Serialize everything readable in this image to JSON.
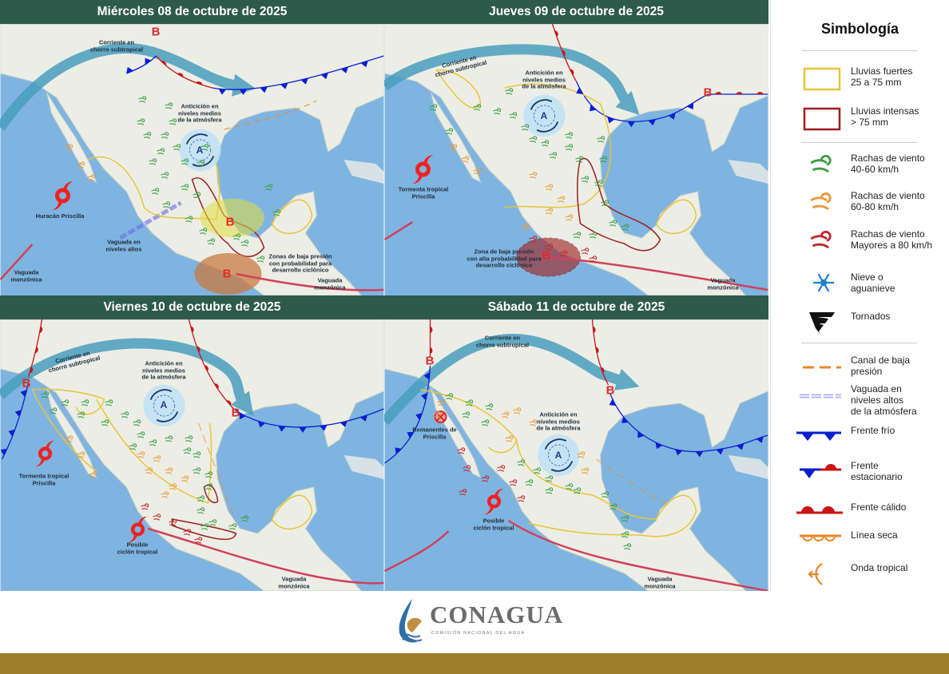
{
  "panels": [
    {
      "title": "Miércoles 08 de octubre de 2025",
      "labels": {
        "jet": "Corriente en\nchorro subtropical",
        "anticyclone": "Anticición en\nniveles medios\nde la atmósfera",
        "storm": "Huracán Priscilla",
        "upper_trough": "Vaguada en\nniveles altos",
        "low_zone": "Zonas de baja presión\ncon probabilidad para\ndesarrollo ciclónico",
        "monsoon_1": "Vaguada\nmonzónica",
        "monsoon_2": "Vaguada\nmonzónica",
        "high": "A",
        "low_1": "B",
        "low_2": "B",
        "low_3": "B"
      }
    },
    {
      "title": "Jueves 09 de octubre de 2025",
      "labels": {
        "jet": "Corriente en\nchorro subtropical",
        "anticyclone": "Anticición en\nniveles medios\nde la atmósfera",
        "storm": "Tormenta tropical\nPriscilla",
        "low_zone": "Zona de baja presión\ncon alta probabilidad para\ndesarrollo ciclónico",
        "monsoon": "Vaguada\nmonzónica",
        "high": "A",
        "low_1": "B",
        "low_2": "B"
      }
    },
    {
      "title": "Viernes 10 de octubre de 2025",
      "labels": {
        "jet": "Corriente en\nchorro subtropical",
        "anticyclone": "Anticición en\nniveles medios\nde la atmósfera",
        "storm": "Tormenta tropical\nPriscilla",
        "cyclone": "Posible\nciclón tropical",
        "monsoon": "Vaguada\nmonzónica",
        "high": "A",
        "low_1": "B",
        "low_2": "B"
      }
    },
    {
      "title": "Sábado 11 de octubre de 2025",
      "labels": {
        "jet": "Corriente en\nchorro subtropical",
        "anticyclone": "Anticición en\nniveles medios\nde la atmósfera",
        "remnants": "Remanentes de\nPriscilla",
        "cyclone": "Posible\nciclón tropical",
        "monsoon": "Vaguada\nmonzónica",
        "high": "A",
        "low_1": "B",
        "low_2": "B"
      }
    }
  ],
  "legend": {
    "title": "Simbología",
    "items": [
      {
        "label": "Lluvias fuertes\n25 a 75 mm",
        "icon": "yellow-rect",
        "color": "#e8c53a"
      },
      {
        "label": "Lluvias intensas\n> 75 mm",
        "icon": "red-rect",
        "color": "#9e1f1f"
      },
      {
        "label": "Rachas de viento\n40-60 km/h",
        "icon": "wind-gust",
        "color": "#3a9e45"
      },
      {
        "label": "Rachas de viento\n60-80 km/h",
        "icon": "wind-gust",
        "color": "#ec9a3a"
      },
      {
        "label": "Rachas de viento\nMayores a 80 km/h",
        "icon": "wind-gust",
        "color": "#c2272d"
      },
      {
        "label": "Nieve o\naguanieve",
        "icon": "snowflake",
        "color": "#1f7fd0"
      },
      {
        "label": "Tornados",
        "icon": "tornado",
        "color": "#111111"
      },
      {
        "label": "Canal de baja\npresión",
        "icon": "dashed-line",
        "color": "#e8892a"
      },
      {
        "label": "Vaguada en\nniveles altos\nde la atmósfera",
        "icon": "double-dashed-line",
        "color": "#8a8ae8"
      },
      {
        "label": "Frente frío",
        "icon": "cold-front",
        "color": "#0a1fd0"
      },
      {
        "label": "Frente\nestacionario",
        "icon": "stationary-front",
        "color": "#c81414"
      },
      {
        "label": "Frente cálido",
        "icon": "warm-front",
        "color": "#c81414"
      },
      {
        "label": "Línea seca",
        "icon": "dry-line",
        "color": "#e8892a"
      },
      {
        "label": "Onda tropical",
        "icon": "tropical-wave",
        "color": "#e8892a"
      }
    ]
  },
  "footer": {
    "brand": "CONAGUA",
    "subtitle": "COMISIÓN NACIONAL DEL AGUA"
  },
  "colors": {
    "header": "#2e5a4c",
    "ocean": "#7fb4e0",
    "land": "#eceee6",
    "gold": "#a07f2a",
    "jet": "#3f97b8"
  }
}
